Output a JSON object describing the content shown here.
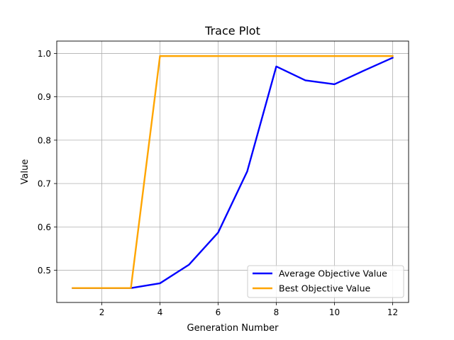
{
  "chart_data": {
    "type": "line",
    "title": "Trace Plot",
    "xlabel": "Generation Number",
    "ylabel": "Value",
    "xlim": [
      0.45,
      12.55
    ],
    "ylim": [
      0.4258,
      1.0285
    ],
    "xticks": [
      2,
      4,
      6,
      8,
      10,
      12
    ],
    "xtick_labels": [
      "2",
      "4",
      "6",
      "8",
      "10",
      "12"
    ],
    "yticks": [
      0.5,
      0.6,
      0.7,
      0.8,
      0.9,
      1.0
    ],
    "ytick_labels": [
      "0.5",
      "0.6",
      "0.7",
      "0.8",
      "0.9",
      "1.0"
    ],
    "grid": true,
    "legend_position": "lower-right",
    "x": [
      1,
      2,
      3,
      4,
      5,
      6,
      7,
      8,
      9,
      10,
      11,
      12
    ],
    "series": [
      {
        "name": "Average Objective Value",
        "color": "#0000ff",
        "values": [
          0.459,
          0.459,
          0.459,
          0.47,
          0.513,
          0.587,
          0.728,
          0.97,
          0.938,
          0.929,
          0.96,
          0.99
        ]
      },
      {
        "name": "Best Objective Value",
        "color": "#ffa500",
        "values": [
          0.459,
          0.459,
          0.459,
          0.994,
          0.994,
          0.994,
          0.994,
          0.994,
          0.994,
          0.994,
          0.994,
          0.994
        ]
      }
    ]
  }
}
